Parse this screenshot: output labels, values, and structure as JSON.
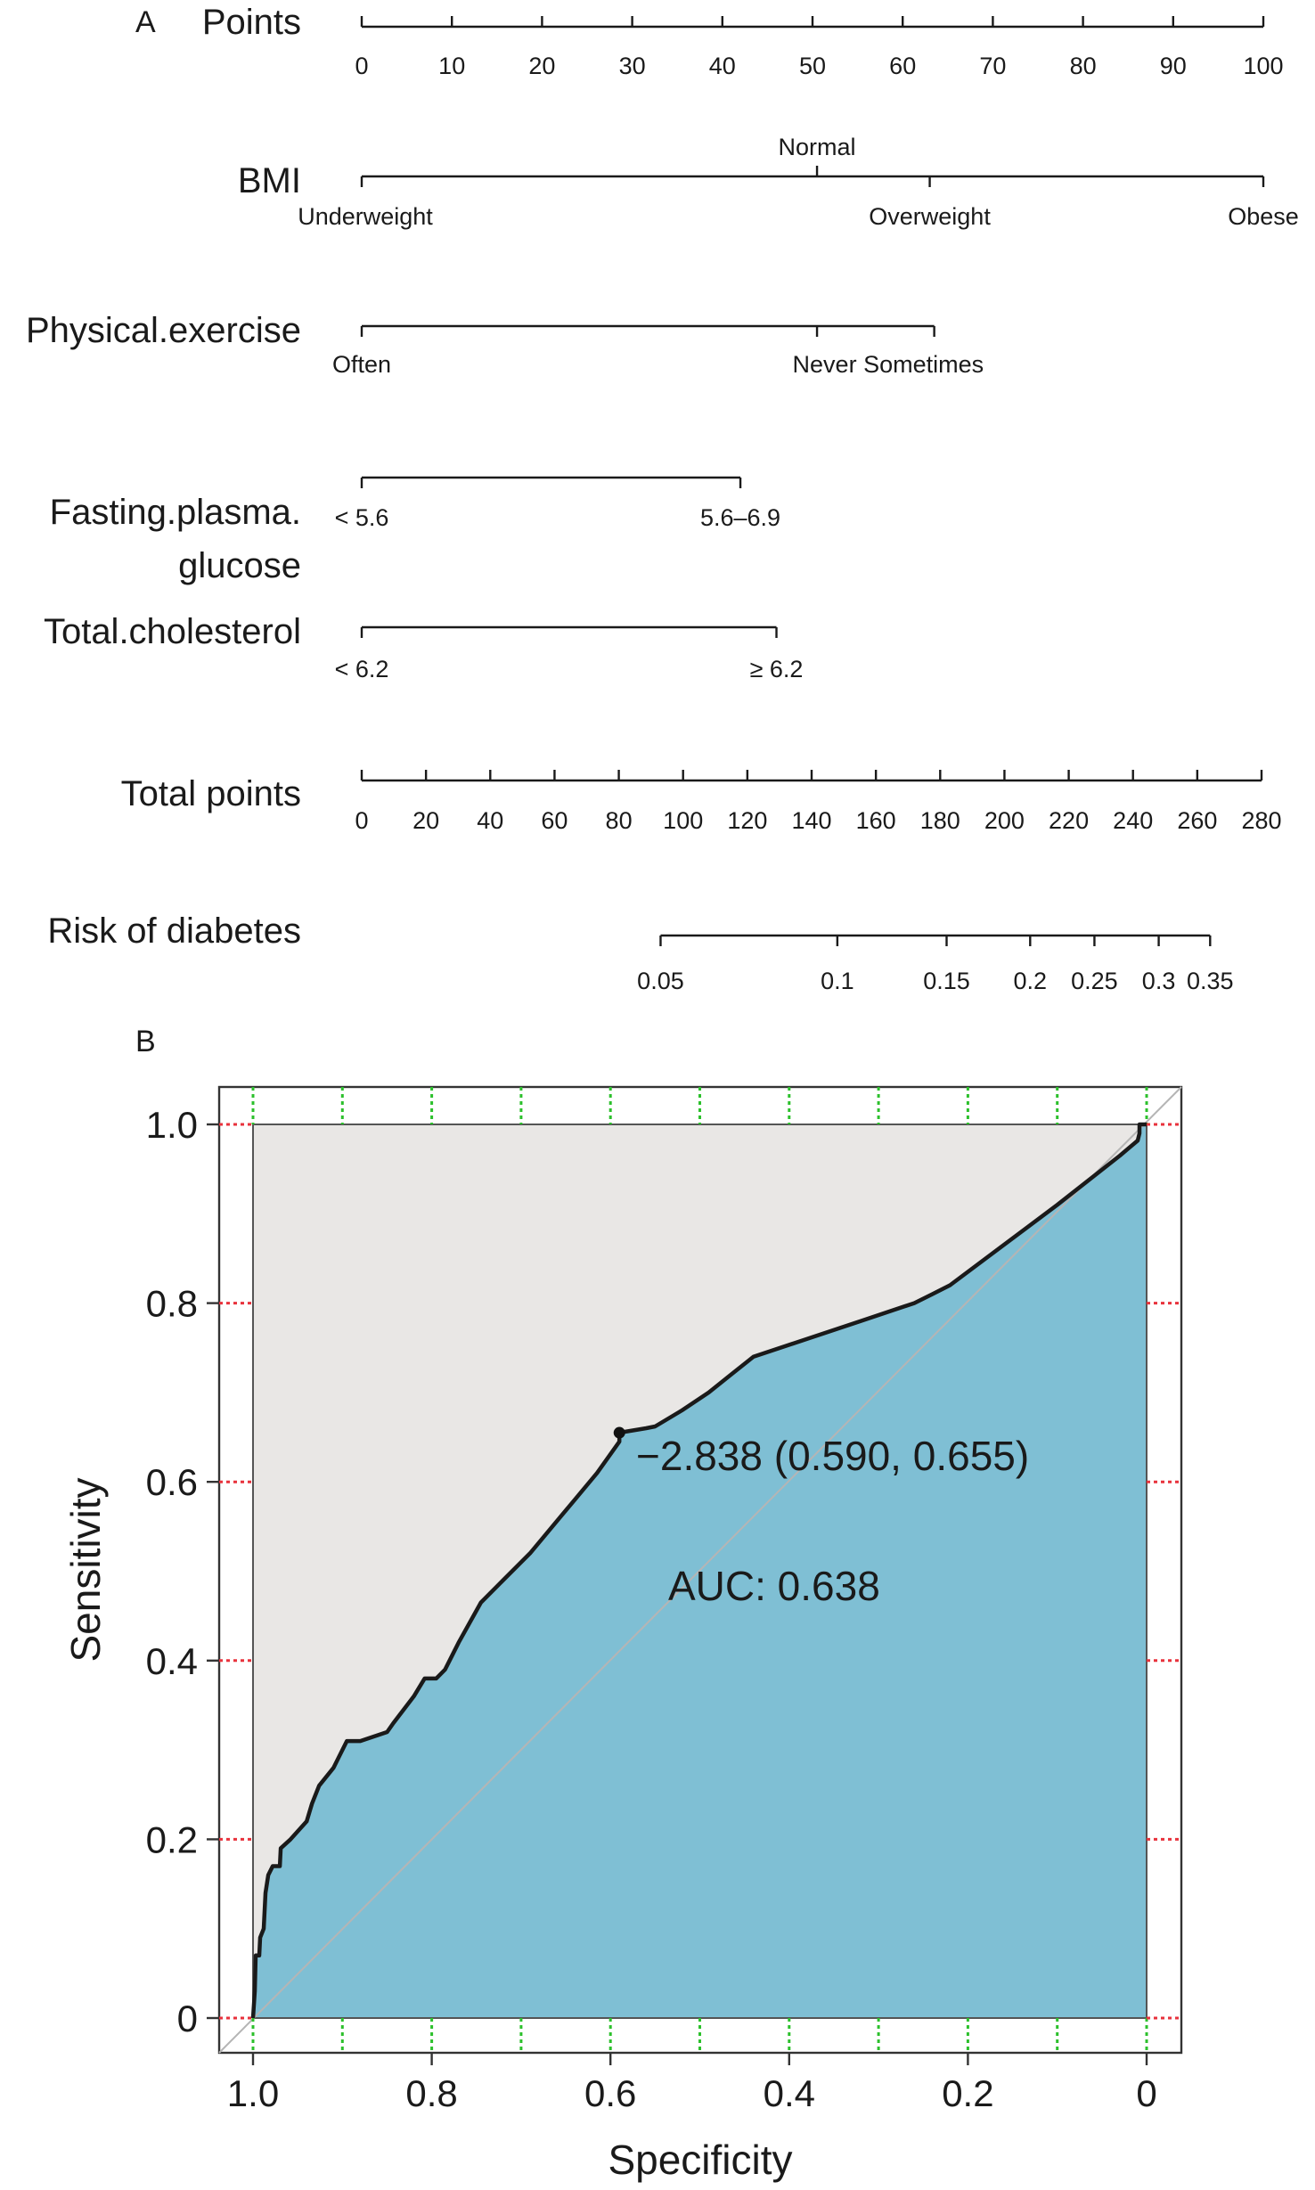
{
  "chart_data": [
    {
      "type": "nomogram",
      "panel_label": "A",
      "scales": [
        {
          "name": "Points",
          "kind": "numeric",
          "domain": [
            0,
            100
          ],
          "ticks": [
            0,
            10,
            20,
            30,
            40,
            50,
            60,
            70,
            80,
            90,
            100
          ],
          "tick_labels": [
            "0",
            "10",
            "20",
            "30",
            "40",
            "50",
            "60",
            "70",
            "80",
            "90",
            "100"
          ]
        },
        {
          "name": "BMI",
          "kind": "categorical",
          "levels": [
            {
              "label": "Underweight",
              "points": 0
            },
            {
              "label": "Normal",
              "points": 50.5
            },
            {
              "label": "Overweight",
              "points": 63
            },
            {
              "label": "Obese",
              "points": 100
            }
          ]
        },
        {
          "name": "Physical.exercise",
          "kind": "categorical",
          "levels": [
            {
              "label": "Often",
              "points": 0
            },
            {
              "label": "Never",
              "points": 50.5
            },
            {
              "label": "Sometimes",
              "points": 63.5
            }
          ],
          "level_text": "Never Sometimes"
        },
        {
          "name": "Fasting.plasma.",
          "name_line2": "glucose",
          "kind": "categorical",
          "levels": [
            {
              "label": "< 5.6",
              "points": 0
            },
            {
              "label": "5.6–6.9",
              "points": 42
            }
          ]
        },
        {
          "name": "Total.cholesterol",
          "kind": "categorical",
          "levels": [
            {
              "label": "< 6.2",
              "points": 0
            },
            {
              "label": "≥ 6.2",
              "points": 46
            }
          ]
        },
        {
          "name": "Total points",
          "kind": "numeric",
          "domain": [
            0,
            280
          ],
          "ticks": [
            0,
            20,
            40,
            60,
            80,
            100,
            120,
            140,
            160,
            180,
            200,
            220,
            240,
            260,
            280
          ],
          "tick_labels": [
            "0",
            "20",
            "40",
            "60",
            "80",
            "100",
            "120",
            "140",
            "160",
            "180",
            "200",
            "220",
            "240",
            "260",
            "280"
          ]
        },
        {
          "name": "Risk of diabetes",
          "kind": "risk",
          "ticks": [
            {
              "label": "0.05",
              "total_points": 93
            },
            {
              "label": "0.1",
              "total_points": 148
            },
            {
              "label": "0.15",
              "total_points": 182
            },
            {
              "label": "0.2",
              "total_points": 208
            },
            {
              "label": "0.25",
              "total_points": 228
            },
            {
              "label": "0.3",
              "total_points": 248
            },
            {
              "label": "0.35",
              "total_points": 264
            }
          ]
        }
      ]
    },
    {
      "type": "line",
      "panel_label": "B",
      "xlabel": "Specificity",
      "ylabel": "Sensitivity",
      "xlim": [
        1.0,
        0
      ],
      "ylim": [
        0,
        1.0
      ],
      "x_reversed": true,
      "xticks": [
        1.0,
        0.8,
        0.6,
        0.4,
        0.2,
        0
      ],
      "xtick_labels": [
        "1.0",
        "0.8",
        "0.6",
        "0.4",
        "0.2",
        "0"
      ],
      "yticks": [
        0,
        0.2,
        0.4,
        0.6,
        0.8,
        1.0
      ],
      "ytick_labels": [
        "0",
        "0.2",
        "0.4",
        "0.6",
        "0.8",
        "1.0"
      ],
      "x_grid": [
        1.0,
        0.9,
        0.8,
        0.7,
        0.6,
        0.5,
        0.4,
        0.3,
        0.2,
        0.1,
        0
      ],
      "y_grid": [
        0,
        0.2,
        0.4,
        0.6,
        0.8,
        1.0
      ],
      "grid": true,
      "x_grid_color": "#2cc02c",
      "y_grid_color": "#e8323c",
      "fill_color": "#7fbfd4",
      "upper_fill_color": "#e9e7e5",
      "curve_color": "#1a1a1a",
      "diagonal_color": "#b5b5b5",
      "series": [
        {
          "points": [
            [
              1.0,
              0.0
            ],
            [
              0.998,
              0.03
            ],
            [
              0.997,
              0.07
            ],
            [
              0.993,
              0.07
            ],
            [
              0.992,
              0.09
            ],
            [
              0.988,
              0.1
            ],
            [
              0.986,
              0.14
            ],
            [
              0.983,
              0.16
            ],
            [
              0.978,
              0.17
            ],
            [
              0.97,
              0.17
            ],
            [
              0.969,
              0.19
            ],
            [
              0.958,
              0.2
            ],
            [
              0.94,
              0.22
            ],
            [
              0.934,
              0.24
            ],
            [
              0.926,
              0.26
            ],
            [
              0.91,
              0.28
            ],
            [
              0.895,
              0.31
            ],
            [
              0.88,
              0.31
            ],
            [
              0.85,
              0.32
            ],
            [
              0.843,
              0.33
            ],
            [
              0.82,
              0.36
            ],
            [
              0.808,
              0.38
            ],
            [
              0.795,
              0.38
            ],
            [
              0.785,
              0.39
            ],
            [
              0.77,
              0.42
            ],
            [
              0.745,
              0.465
            ],
            [
              0.72,
              0.49
            ],
            [
              0.69,
              0.52
            ],
            [
              0.665,
              0.55
            ],
            [
              0.64,
              0.58
            ],
            [
              0.615,
              0.61
            ],
            [
              0.59,
              0.645
            ],
            [
              0.59,
              0.655
            ],
            [
              0.56,
              0.66
            ],
            [
              0.55,
              0.662
            ],
            [
              0.52,
              0.68
            ],
            [
              0.49,
              0.7
            ],
            [
              0.465,
              0.72
            ],
            [
              0.44,
              0.74
            ],
            [
              0.38,
              0.76
            ],
            [
              0.32,
              0.78
            ],
            [
              0.26,
              0.8
            ],
            [
              0.24,
              0.81
            ],
            [
              0.22,
              0.82
            ],
            [
              0.1,
              0.91
            ],
            [
              0.03,
              0.965
            ],
            [
              0.01,
              0.982
            ],
            [
              0.008,
              0.99
            ],
            [
              0.008,
              1.0
            ],
            [
              0.0,
              1.0
            ]
          ]
        }
      ],
      "annotations": [
        {
          "text": "−2.838 (0.590, 0.655)",
          "x": 0.59,
          "y": 0.655,
          "marker": true
        },
        {
          "text": "AUC: 0.638"
        }
      ]
    }
  ]
}
